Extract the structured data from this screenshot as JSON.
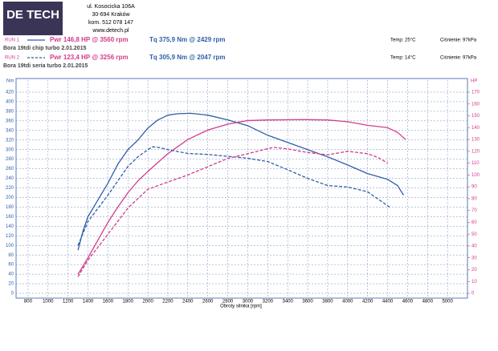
{
  "header": {
    "logo": "DE TECH",
    "address": [
      "ul. Kosocicka 106A",
      "30-694 Kraków",
      "kom. 512 078 147",
      "www.detech.pl"
    ]
  },
  "runs": [
    {
      "label": "RUN 1",
      "power": "Pwr 146,8 HP @ 3560 rpm",
      "torque": "Tq 375,9 Nm @ 2429 rpm",
      "temp": "Temp: 25°C",
      "pressure": "Ciśnienie: 97kPa",
      "description": "Bora 19tdi chip turbo 2.01.2015",
      "dashed": false
    },
    {
      "label": "RUN 2",
      "power": "Pwr 123,4 HP @ 3256 rpm",
      "torque": "Tq 305,9 Nm @ 2047 rpm",
      "temp": "Temp: 14°C",
      "pressure": "Ciśnienie: 97kPa",
      "description": "Bora 19tdi seria turbo 2.01.2015",
      "dashed": true
    }
  ],
  "chart_data": {
    "type": "line",
    "x_label": "Obroty silnika [rpm]",
    "y_label": "Nm",
    "y2_label": "HP",
    "xlim": [
      680,
      5200
    ],
    "xticks": [
      800,
      1000,
      1200,
      1400,
      1600,
      1800,
      2000,
      2200,
      2400,
      2600,
      2800,
      3000,
      3200,
      3400,
      3600,
      3800,
      4000,
      4200,
      4400,
      4600,
      4800,
      5000
    ],
    "ylim": [
      0,
      420
    ],
    "yticks": [
      0,
      20,
      40,
      60,
      80,
      100,
      120,
      140,
      160,
      180,
      200,
      220,
      240,
      260,
      280,
      300,
      320,
      340,
      360,
      380,
      400,
      420
    ],
    "y2lim": [
      0,
      170
    ],
    "y2ticks": [
      0,
      10,
      20,
      30,
      40,
      50,
      60,
      70,
      80,
      90,
      100,
      110,
      120,
      130,
      140,
      150,
      160,
      170
    ],
    "grid": true,
    "series": [
      {
        "name": "Tq RUN 1",
        "color": "#2f5ea8",
        "dashed": false,
        "x": [
          1300,
          1350,
          1400,
          1500,
          1600,
          1700,
          1800,
          1900,
          2000,
          2100,
          2200,
          2300,
          2429,
          2600,
          2800,
          3000,
          3200,
          3400,
          3600,
          3800,
          4000,
          4200,
          4400,
          4500,
          4560
        ],
        "values": [
          90,
          130,
          160,
          195,
          230,
          270,
          300,
          320,
          345,
          362,
          372,
          375,
          375.9,
          372,
          362,
          350,
          330,
          315,
          300,
          285,
          268,
          250,
          238,
          225,
          205
        ]
      },
      {
        "name": "Pwr RUN 1",
        "color": "#d23c8c",
        "dashed": false,
        "axis": "y2",
        "x": [
          1300,
          1400,
          1500,
          1600,
          1700,
          1800,
          1900,
          2000,
          2200,
          2400,
          2600,
          2800,
          3000,
          3200,
          3560,
          3800,
          4000,
          4200,
          4400,
          4500,
          4580
        ],
        "values": [
          16,
          30,
          45,
          60,
          73,
          85,
          95,
          103,
          118,
          130,
          138,
          143,
          146,
          146.5,
          146.8,
          146.5,
          145,
          142,
          140,
          136,
          130
        ]
      },
      {
        "name": "Tq RUN 2",
        "color": "#2f5ea8",
        "dashed": true,
        "x": [
          1300,
          1400,
          1600,
          1800,
          1900,
          2000,
          2047,
          2100,
          2200,
          2400,
          2600,
          2800,
          3000,
          3200,
          3400,
          3600,
          3800,
          4000,
          4200,
          4420
        ],
        "values": [
          100,
          150,
          205,
          265,
          285,
          300,
          305.9,
          305,
          300,
          292,
          290,
          286,
          282,
          275,
          258,
          240,
          225,
          222,
          212,
          180
        ]
      },
      {
        "name": "Pwr RUN 2",
        "color": "#d23c8c",
        "dashed": true,
        "axis": "y2",
        "x": [
          1300,
          1400,
          1600,
          1800,
          2000,
          2200,
          2400,
          2600,
          2800,
          3000,
          3256,
          3400,
          3600,
          3800,
          4000,
          4200,
          4300,
          4400
        ],
        "values": [
          14,
          28,
          50,
          72,
          88,
          94,
          100,
          107,
          114,
          118,
          123.4,
          122,
          119,
          117,
          120,
          118,
          115,
          110
        ]
      }
    ]
  }
}
